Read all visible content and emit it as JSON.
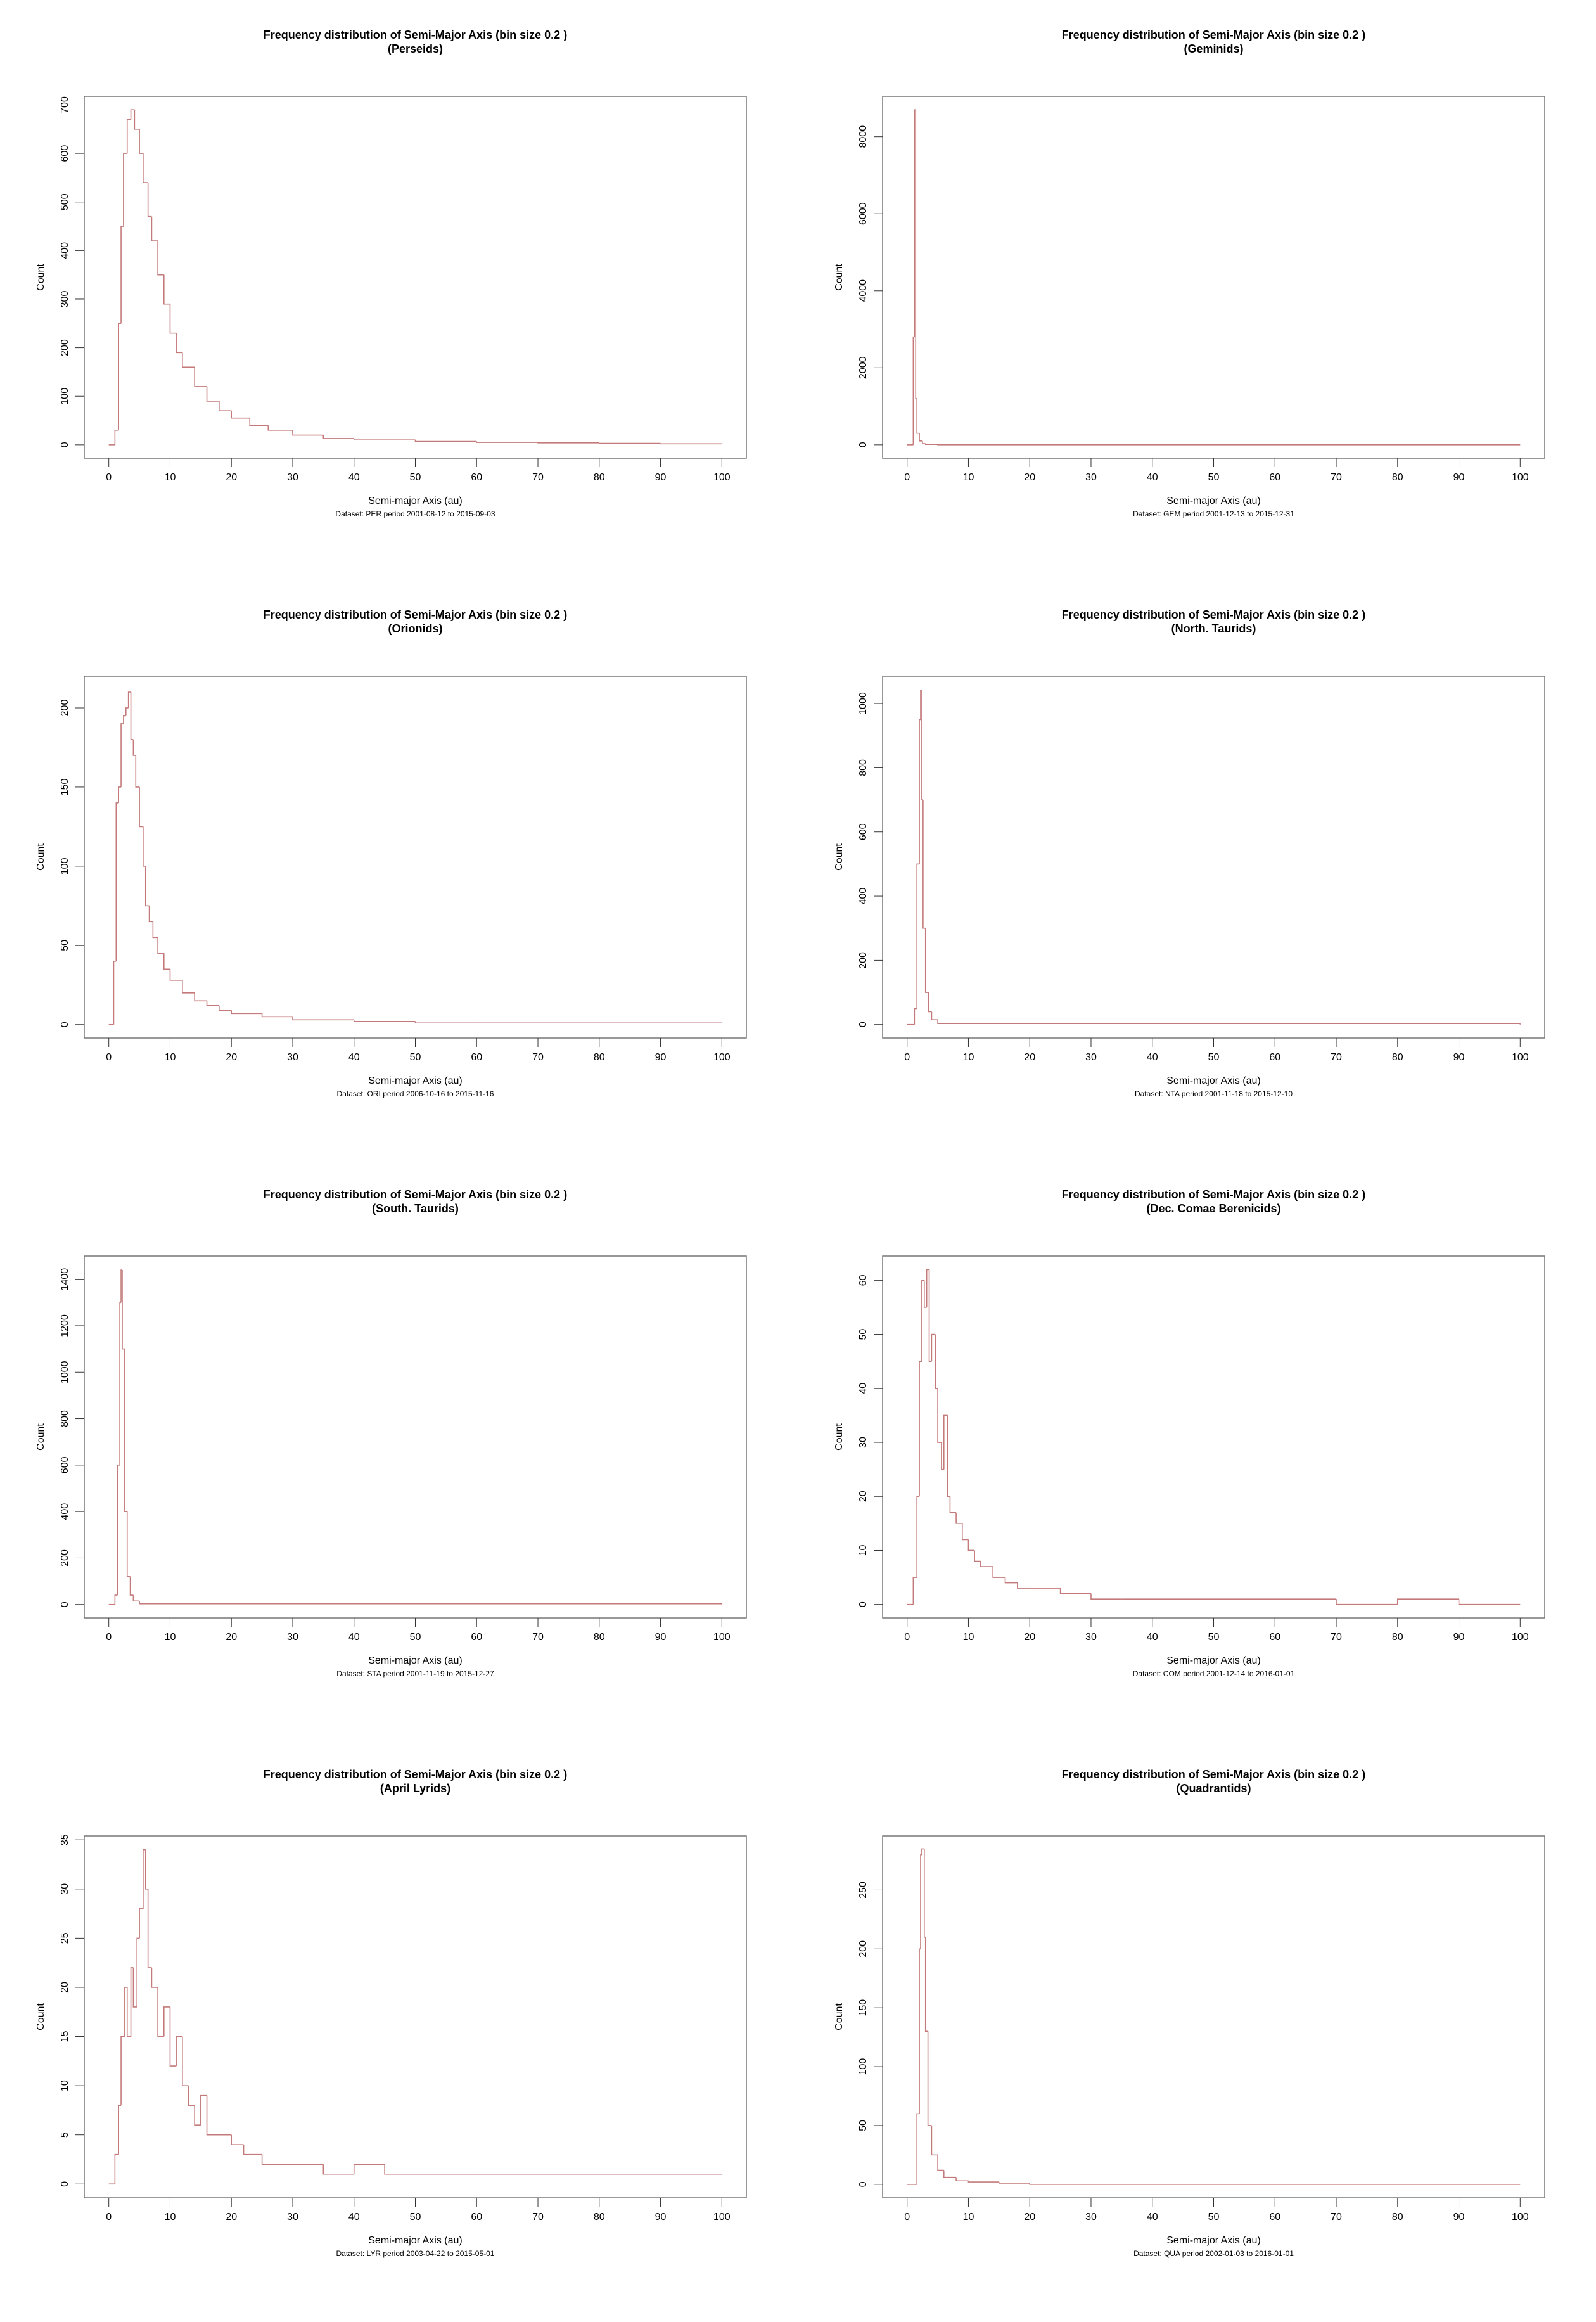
{
  "chart_data": [
    {
      "type": "step",
      "title": "Frequency distribution of Semi-Major Axis (bin size 0.2 )",
      "subtitle": "(Perseids)",
      "x_label": "Semi-major Axis (au)",
      "y_label": "Count",
      "caption": "Dataset: PER period 2001-08-12 to 2015-09-03",
      "color": "#c47a7a",
      "x": [
        0,
        1,
        1.6,
        2,
        2.4,
        3,
        3.6,
        4.2,
        5,
        5.6,
        6.4,
        7,
        8,
        9,
        10,
        11,
        12,
        14,
        16,
        18,
        20,
        23,
        26,
        30,
        35,
        40,
        50,
        60,
        70,
        80,
        90,
        100
      ],
      "values": [
        0,
        30,
        250,
        450,
        600,
        670,
        690,
        650,
        600,
        540,
        470,
        420,
        350,
        290,
        230,
        190,
        160,
        120,
        90,
        70,
        55,
        40,
        30,
        20,
        13,
        10,
        7,
        5,
        4,
        3,
        2,
        2
      ],
      "xlim": [
        -4,
        104
      ],
      "xticks": [
        0,
        10,
        20,
        30,
        40,
        50,
        60,
        70,
        80,
        90,
        100
      ],
      "ylim": [
        -27.6,
        717.6
      ],
      "yticks": [
        0,
        100,
        200,
        300,
        400,
        500,
        600,
        700
      ]
    },
    {
      "type": "step",
      "title": "Frequency distribution of Semi-Major Axis (bin size 0.2 )",
      "subtitle": "(Geminids)",
      "x_label": "Semi-major Axis (au)",
      "y_label": "Count",
      "caption": "Dataset: GEM period 2001-12-13 to 2015-12-31",
      "color": "#c47a7a",
      "x": [
        0,
        1,
        1.2,
        1.4,
        1.6,
        2,
        2.5,
        3,
        5,
        100
      ],
      "values": [
        0,
        2800,
        8700,
        1200,
        300,
        100,
        30,
        10,
        0,
        0
      ],
      "xlim": [
        -4,
        104
      ],
      "xticks": [
        0,
        10,
        20,
        30,
        40,
        50,
        60,
        70,
        80,
        90,
        100
      ],
      "ylim": [
        -348,
        9048
      ],
      "yticks": [
        0,
        2000,
        4000,
        6000,
        8000
      ]
    },
    {
      "type": "step",
      "title": "Frequency distribution of Semi-Major Axis (bin size 0.2 )",
      "subtitle": "(Orionids)",
      "x_label": "Semi-major Axis (au)",
      "y_label": "Count",
      "caption": "Dataset: ORI period 2006-10-16 to 2015-11-16",
      "color": "#c47a7a",
      "x": [
        0,
        0.8,
        1.2,
        1.6,
        2,
        2.4,
        2.8,
        3.2,
        3.6,
        4,
        4.4,
        5,
        5.6,
        6,
        6.6,
        7.2,
        8,
        9,
        10,
        12,
        14,
        16,
        18,
        20,
        25,
        30,
        40,
        50,
        60,
        70,
        80,
        90,
        100
      ],
      "values": [
        0,
        40,
        140,
        150,
        190,
        195,
        200,
        210,
        180,
        170,
        150,
        125,
        100,
        75,
        65,
        55,
        45,
        35,
        28,
        20,
        15,
        12,
        9,
        7,
        5,
        3,
        2,
        1,
        1,
        1,
        1,
        1,
        1
      ],
      "xlim": [
        -4,
        104
      ],
      "xticks": [
        0,
        10,
        20,
        30,
        40,
        50,
        60,
        70,
        80,
        90,
        100
      ],
      "ylim": [
        -8.5,
        220
      ],
      "yticks": [
        0,
        50,
        100,
        150,
        200
      ]
    },
    {
      "type": "step",
      "title": "Frequency distribution of Semi-Major Axis (bin size 0.2 )",
      "subtitle": "(North. Taurids)",
      "x_label": "Semi-major Axis (au)",
      "y_label": "Count",
      "caption": "Dataset: NTA period 2001-11-18 to 2015-12-10",
      "color": "#c47a7a",
      "x": [
        0,
        1.2,
        1.6,
        2,
        2.2,
        2.4,
        2.6,
        3,
        3.5,
        4,
        5,
        100
      ],
      "values": [
        0,
        50,
        500,
        950,
        1040,
        700,
        300,
        100,
        40,
        15,
        3,
        0
      ],
      "xlim": [
        -4,
        104
      ],
      "xticks": [
        0,
        10,
        20,
        30,
        40,
        50,
        60,
        70,
        80,
        90,
        100
      ],
      "ylim": [
        -42,
        1085
      ],
      "yticks": [
        0,
        200,
        400,
        600,
        800,
        1000
      ]
    },
    {
      "type": "step",
      "title": "Frequency distribution of Semi-Major Axis (bin size 0.2 )",
      "subtitle": "(South. Taurids)",
      "x_label": "Semi-major Axis (au)",
      "y_label": "Count",
      "caption": "Dataset: STA period 2001-11-19 to 2015-12-27",
      "color": "#c47a7a",
      "x": [
        0,
        1,
        1.4,
        1.8,
        2,
        2.2,
        2.6,
        3,
        3.5,
        4,
        5,
        100
      ],
      "values": [
        0,
        40,
        600,
        1300,
        1440,
        1100,
        400,
        120,
        40,
        15,
        3,
        0
      ],
      "xlim": [
        -4,
        104
      ],
      "xticks": [
        0,
        10,
        20,
        30,
        40,
        50,
        60,
        70,
        80,
        90,
        100
      ],
      "ylim": [
        -58,
        1500
      ],
      "yticks": [
        0,
        200,
        400,
        600,
        800,
        1000,
        1200,
        1400
      ]
    },
    {
      "type": "step",
      "title": "Frequency distribution of Semi-Major Axis (bin size 0.2 )",
      "subtitle": "(Dec. Comae Berenicids)",
      "x_label": "Semi-major Axis (au)",
      "y_label": "Count",
      "caption": "Dataset: COM period 2001-12-14 to 2016-01-01",
      "color": "#c47a7a",
      "x": [
        0,
        1,
        1.6,
        2,
        2.4,
        2.8,
        3.2,
        3.6,
        4,
        4.6,
        5,
        5.6,
        6,
        6.6,
        7,
        8,
        9,
        10,
        11,
        12,
        14,
        16,
        18,
        20,
        25,
        30,
        35,
        40,
        50,
        60,
        70,
        80,
        90,
        100
      ],
      "values": [
        0,
        5,
        20,
        45,
        60,
        55,
        62,
        45,
        50,
        40,
        30,
        25,
        35,
        20,
        17,
        15,
        12,
        10,
        8,
        7,
        5,
        4,
        3,
        3,
        2,
        1,
        1,
        1,
        1,
        1,
        0,
        1,
        0,
        0
      ],
      "xlim": [
        -4,
        104
      ],
      "xticks": [
        0,
        10,
        20,
        30,
        40,
        50,
        60,
        70,
        80,
        90,
        100
      ],
      "ylim": [
        -2.5,
        64.5
      ],
      "yticks": [
        0,
        10,
        20,
        30,
        40,
        50,
        60
      ]
    },
    {
      "type": "step",
      "title": "Frequency distribution of Semi-Major Axis (bin size 0.2 )",
      "subtitle": "(April Lyrids)",
      "x_label": "Semi-major Axis (au)",
      "y_label": "Count",
      "caption": "Dataset: LYR period 2003-04-22 to 2015-05-01",
      "color": "#c47a7a",
      "x": [
        0,
        1,
        1.6,
        2,
        2.6,
        3,
        3.6,
        4,
        4.6,
        5,
        5.6,
        6,
        6.4,
        7,
        8,
        9,
        10,
        11,
        12,
        13,
        14,
        15,
        16,
        18,
        20,
        22,
        25,
        30,
        35,
        40,
        45,
        50,
        60,
        70,
        80,
        90,
        100
      ],
      "values": [
        0,
        3,
        8,
        15,
        20,
        15,
        22,
        18,
        25,
        28,
        34,
        30,
        22,
        20,
        15,
        18,
        12,
        15,
        10,
        8,
        6,
        9,
        5,
        5,
        4,
        3,
        2,
        2,
        1,
        2,
        1,
        1,
        1,
        1,
        1,
        1,
        1
      ],
      "xlim": [
        -4,
        104
      ],
      "xticks": [
        0,
        10,
        20,
        30,
        40,
        50,
        60,
        70,
        80,
        90,
        100
      ],
      "ylim": [
        -1.4,
        35.4
      ],
      "yticks": [
        0,
        5,
        10,
        15,
        20,
        25,
        30,
        35
      ]
    },
    {
      "type": "step",
      "title": "Frequency distribution of Semi-Major Axis (bin size 0.2 )",
      "subtitle": "(Quadrantids)",
      "x_label": "Semi-major Axis (au)",
      "y_label": "Count",
      "caption": "Dataset: QUA period 2002-01-03 to 2016-01-01",
      "color": "#c47a7a",
      "x": [
        0,
        1.6,
        2,
        2.2,
        2.4,
        2.8,
        3,
        3.4,
        4,
        5,
        6,
        8,
        10,
        15,
        20,
        100
      ],
      "values": [
        0,
        60,
        200,
        280,
        285,
        210,
        130,
        50,
        25,
        12,
        6,
        3,
        2,
        1,
        0,
        0
      ],
      "xlim": [
        -4,
        104
      ],
      "xticks": [
        0,
        10,
        20,
        30,
        40,
        50,
        60,
        70,
        80,
        90,
        100
      ],
      "ylim": [
        -11.4,
        296
      ],
      "yticks": [
        0,
        50,
        100,
        150,
        200,
        250
      ]
    }
  ]
}
